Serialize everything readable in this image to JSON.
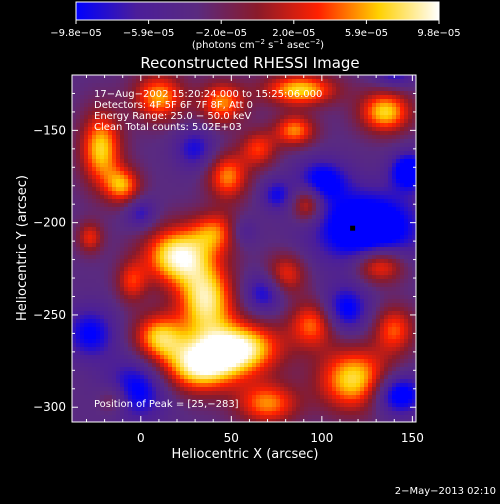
{
  "chart_data": {
    "type": "heatmap",
    "title": "Reconstructed RHESSI Image",
    "xlabel": "Heliocentric X (arcsec)",
    "ylabel": "Heliocentric Y (arcsec)",
    "xlim": [
      -38,
      152
    ],
    "ylim": [
      -308,
      -120
    ],
    "x_ticks": [
      0,
      50,
      100,
      150
    ],
    "y_ticks": [
      -150,
      -200,
      -250,
      -300
    ],
    "x_tick_labels": [
      "0",
      "50",
      "100",
      "150"
    ],
    "y_tick_labels": [
      "−150",
      "−200",
      "−250",
      "−300"
    ],
    "colorbar": {
      "range": [
        -9.8e-05,
        9.8e-05
      ],
      "tick_labels": [
        "−9.8e−05",
        "−5.9e−05",
        "−2.0e−05",
        "2.0e−05",
        "5.9e−05",
        "9.8e−05"
      ],
      "units_prefix": "(photons cm",
      "units_exp1": "−2",
      "units_mid": " s",
      "units_exp2": "−1",
      "units_mid2": " asec",
      "units_exp3": "−2",
      "units_suffix": ")",
      "colors": [
        "#0000ff",
        "#4b1e9a",
        "#5a2a80",
        "#8a1a2a",
        "#ff2000",
        "#ffd000",
        "#ffffff"
      ]
    },
    "info_lines": [
      "17−Aug−2002 15:20:24.000 to 15:25:06.000",
      "Detectors: 4F 5F 6F 7F 8F, Att 0",
      "Energy Range: 25.0 − 50.0 keV",
      "Clean     Total counts: 5.02E+03"
    ],
    "peak_label": "Position of Peak = [25,−283]",
    "peak_position": [
      25,
      -283
    ],
    "marker_position": [
      117,
      -203
    ],
    "footer_date": "2−May−2013 02:10",
    "blobs": [
      {
        "x": 20,
        "y": -218,
        "sx": 13,
        "sy": 11,
        "a": 1.0
      },
      {
        "x": 36,
        "y": -242,
        "sx": 11,
        "sy": 14,
        "a": 0.95
      },
      {
        "x": 55,
        "y": -268,
        "sx": 16,
        "sy": 10,
        "a": 1.0
      },
      {
        "x": 32,
        "y": -278,
        "sx": 15,
        "sy": 10,
        "a": 0.95
      },
      {
        "x": 10,
        "y": -262,
        "sx": 10,
        "sy": 9,
        "a": 0.8
      },
      {
        "x": 42,
        "y": -205,
        "sx": 10,
        "sy": 8,
        "a": 0.6
      },
      {
        "x": -5,
        "y": -232,
        "sx": 6,
        "sy": 8,
        "a": 0.5
      },
      {
        "x": -22,
        "y": -160,
        "sx": 8,
        "sy": 14,
        "a": 0.85
      },
      {
        "x": -10,
        "y": -180,
        "sx": 7,
        "sy": 7,
        "a": 0.7
      },
      {
        "x": 10,
        "y": -132,
        "sx": 10,
        "sy": 9,
        "a": 0.75
      },
      {
        "x": 45,
        "y": -135,
        "sx": 9,
        "sy": 8,
        "a": 0.7
      },
      {
        "x": 48,
        "y": -175,
        "sx": 8,
        "sy": 9,
        "a": 0.7
      },
      {
        "x": 65,
        "y": -160,
        "sx": 7,
        "sy": 7,
        "a": 0.55
      },
      {
        "x": 88,
        "y": -128,
        "sx": 14,
        "sy": 6,
        "a": 0.85
      },
      {
        "x": 85,
        "y": -150,
        "sx": 8,
        "sy": 6,
        "a": 0.7
      },
      {
        "x": 135,
        "y": -140,
        "sx": 10,
        "sy": 8,
        "a": 0.85
      },
      {
        "x": 92,
        "y": -190,
        "sx": 6,
        "sy": 7,
        "a": 0.6
      },
      {
        "x": 80,
        "y": -228,
        "sx": 8,
        "sy": 8,
        "a": 0.55
      },
      {
        "x": 95,
        "y": -255,
        "sx": 9,
        "sy": 9,
        "a": 0.65
      },
      {
        "x": 132,
        "y": -223,
        "sx": 10,
        "sy": 7,
        "a": 0.75
      },
      {
        "x": 140,
        "y": -258,
        "sx": 8,
        "sy": 9,
        "a": 0.6
      },
      {
        "x": 118,
        "y": -285,
        "sx": 14,
        "sy": 12,
        "a": 0.9
      },
      {
        "x": 70,
        "y": -298,
        "sx": 12,
        "sy": 8,
        "a": 0.7
      },
      {
        "x": -28,
        "y": -208,
        "sx": 5,
        "sy": 6,
        "a": 0.5
      },
      {
        "x": -15,
        "y": -296,
        "sx": 6,
        "sy": 6,
        "a": 0.35
      },
      {
        "x": 125,
        "y": -203,
        "sx": 20,
        "sy": 14,
        "a": -0.9
      },
      {
        "x": 100,
        "y": -177,
        "sx": 10,
        "sy": 8,
        "a": -0.6
      },
      {
        "x": 148,
        "y": -172,
        "sx": 7,
        "sy": 7,
        "a": -0.75
      },
      {
        "x": 113,
        "y": -247,
        "sx": 9,
        "sy": 9,
        "a": -0.6
      },
      {
        "x": 142,
        "y": -293,
        "sx": 10,
        "sy": 8,
        "a": -0.75
      },
      {
        "x": -2,
        "y": -290,
        "sx": 12,
        "sy": 12,
        "a": -0.6
      },
      {
        "x": -28,
        "y": -260,
        "sx": 10,
        "sy": 10,
        "a": -0.55
      },
      {
        "x": 68,
        "y": -238,
        "sx": 8,
        "sy": 8,
        "a": -0.5
      },
      {
        "x": 56,
        "y": -205,
        "sx": 6,
        "sy": 6,
        "a": -0.35
      },
      {
        "x": 30,
        "y": -160,
        "sx": 8,
        "sy": 8,
        "a": -0.45
      },
      {
        "x": 0,
        "y": -195,
        "sx": 6,
        "sy": 6,
        "a": -0.4
      },
      {
        "x": 75,
        "y": -185,
        "sx": 6,
        "sy": 6,
        "a": -0.45
      },
      {
        "x": 140,
        "y": -120,
        "sx": 8,
        "sy": 5,
        "a": -0.4
      }
    ]
  }
}
